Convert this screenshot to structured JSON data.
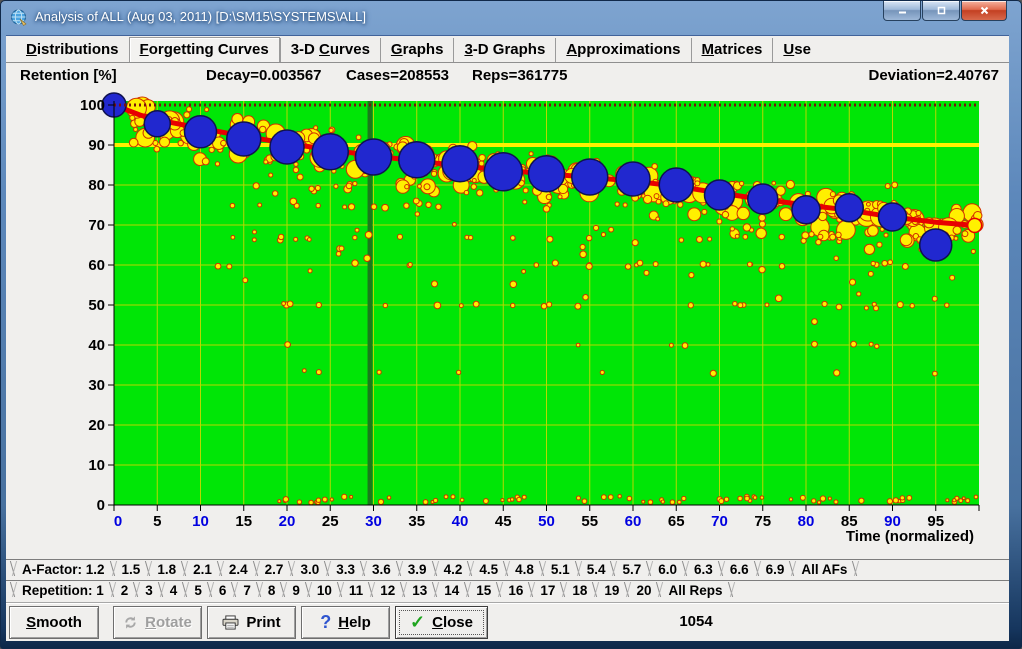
{
  "window": {
    "title": "Analysis of ALL (Aug 03, 2011) [D:\\SM15\\SYSTEMS\\ALL]",
    "controls": [
      {
        "name": "minimize"
      },
      {
        "name": "restore"
      },
      {
        "name": "close"
      }
    ]
  },
  "tab_bar": {
    "tabs": [
      {
        "label": "Distributions",
        "hotkey": 0,
        "selected": false
      },
      {
        "label": "Forgetting Curves",
        "hotkey": 0,
        "selected": true
      },
      {
        "label": "3-D Curves",
        "hotkey": 4,
        "selected": false
      },
      {
        "label": "Graphs",
        "hotkey": 0,
        "selected": false
      },
      {
        "label": "3-D Graphs",
        "hotkey": 0,
        "selected": false
      },
      {
        "label": "Approximations",
        "hotkey": 0,
        "selected": false
      },
      {
        "label": "Matrices",
        "hotkey": 0,
        "selected": false
      },
      {
        "label": "Use",
        "hotkey": 0,
        "selected": false
      }
    ]
  },
  "stats": {
    "axis_title": "Retention [%]",
    "decay": "Decay=0.003567",
    "cases": "Cases=208553",
    "reps": "Reps=361775",
    "deviation": "Deviation=2.40767"
  },
  "chart_data": {
    "type": "scatter",
    "title": "",
    "xlabel": "Time (normalized)",
    "ylabel": "Retention [%]",
    "xlim": [
      0,
      100
    ],
    "ylim": [
      0,
      100
    ],
    "grid": true,
    "x_ticks": [
      0,
      5,
      10,
      15,
      20,
      25,
      30,
      35,
      40,
      45,
      50,
      55,
      60,
      65,
      70,
      75,
      80,
      85,
      90,
      95
    ],
    "y_ticks": [
      0,
      10,
      20,
      30,
      40,
      50,
      60,
      70,
      80,
      90,
      100
    ],
    "x_tick_blue_multiple": 10,
    "reference_lines": {
      "horizontal_yellow_at": 90,
      "top_dotted_maroon_at": 100,
      "vertical_dark_green_at": 29.6
    },
    "series": [
      {
        "name": "forgetting-curve-average",
        "type": "bubble",
        "color": "#2128cf",
        "points": [
          [
            0,
            100,
            12
          ],
          [
            5,
            95.3,
            13
          ],
          [
            10,
            93.3,
            16
          ],
          [
            15,
            91.5,
            17
          ],
          [
            20,
            89.5,
            17
          ],
          [
            25,
            88.3,
            18
          ],
          [
            30,
            87,
            18
          ],
          [
            35,
            86.3,
            18
          ],
          [
            40,
            85.3,
            18
          ],
          [
            45,
            83.3,
            19
          ],
          [
            50,
            82.8,
            18
          ],
          [
            55,
            82,
            18
          ],
          [
            60,
            81.5,
            17
          ],
          [
            65,
            80,
            17
          ],
          [
            70,
            77.5,
            15
          ],
          [
            75,
            76.5,
            15
          ],
          [
            80,
            73.8,
            14
          ],
          [
            85,
            74.3,
            14
          ],
          [
            90,
            72,
            14
          ],
          [
            95,
            65,
            16
          ]
        ]
      },
      {
        "name": "approximation-line",
        "type": "line",
        "color": "#e80000",
        "points": [
          [
            0,
            100
          ],
          [
            3,
            97.5
          ],
          [
            5,
            96.3
          ],
          [
            10,
            94.2
          ],
          [
            15,
            92.2
          ],
          [
            20,
            90.4
          ],
          [
            25,
            88.8
          ],
          [
            30,
            87.3
          ],
          [
            35,
            86
          ],
          [
            40,
            84.8
          ],
          [
            45,
            83.7
          ],
          [
            50,
            82.8
          ],
          [
            55,
            81.9
          ],
          [
            60,
            81
          ],
          [
            65,
            79.7
          ],
          [
            70,
            78
          ],
          [
            75,
            76.4
          ],
          [
            80,
            75
          ],
          [
            85,
            73.7
          ],
          [
            90,
            72
          ],
          [
            95,
            70.7
          ],
          [
            99.5,
            69.9
          ]
        ],
        "end_marker": [
          99.5,
          69.9
        ]
      },
      {
        "name": "raw-cases-cloud",
        "type": "generated-bubbles",
        "fill": "#fff000",
        "stroke": "#d03000",
        "seed": 1337,
        "band": {
          "count": 400,
          "spread": 8,
          "max_r": 10
        },
        "rows": {
          "values": [
            33.3,
            40,
            50,
            60,
            66.7,
            75,
            80
          ],
          "counts": [
            8,
            8,
            22,
            16,
            26,
            22,
            26
          ]
        },
        "mid_sparse": {
          "count": 55
        },
        "bottom": {
          "count": 52,
          "ret_min": 0.6,
          "ret_max": 2.2
        }
      }
    ],
    "colors": {
      "plot_bg": "#00e606",
      "grid": "#b8d800",
      "axis": "#000000",
      "x_tick_blue": "#0000e0",
      "yellow_line": "#fff000",
      "vertical_line": "#1b7a1b",
      "top_dotted": "#7a1010"
    }
  },
  "afactor_bar": {
    "prefix": "A-Factor:",
    "values": [
      "1.2",
      "1.5",
      "1.8",
      "2.1",
      "2.4",
      "2.7",
      "3.0",
      "3.3",
      "3.6",
      "3.9",
      "4.2",
      "4.5",
      "4.8",
      "5.1",
      "5.4",
      "5.7",
      "6.0",
      "6.3",
      "6.6",
      "6.9"
    ],
    "all_label": "All AFs",
    "selected": "All AFs"
  },
  "repetition_bar": {
    "prefix": "Repetition:",
    "values": [
      "1",
      "2",
      "3",
      "4",
      "5",
      "6",
      "7",
      "8",
      "9",
      "10",
      "11",
      "12",
      "13",
      "14",
      "15",
      "16",
      "17",
      "18",
      "19",
      "20"
    ],
    "all_label": "All Reps",
    "selected": "All Reps"
  },
  "button_bar": {
    "buttons": [
      {
        "label": "Smooth",
        "hotkey": 0,
        "icon": null,
        "disabled": false,
        "focused": false
      },
      {
        "label": "Rotate",
        "hotkey": 0,
        "icon": "rotate",
        "disabled": true,
        "focused": false
      },
      {
        "label": "Print",
        "hotkey": null,
        "icon": "print",
        "disabled": false,
        "focused": false
      },
      {
        "label": "Help",
        "hotkey": 0,
        "icon": "help",
        "disabled": false,
        "focused": false
      },
      {
        "label": "Close",
        "hotkey": 0,
        "icon": "check",
        "disabled": false,
        "focused": true
      }
    ],
    "status": "1054"
  }
}
